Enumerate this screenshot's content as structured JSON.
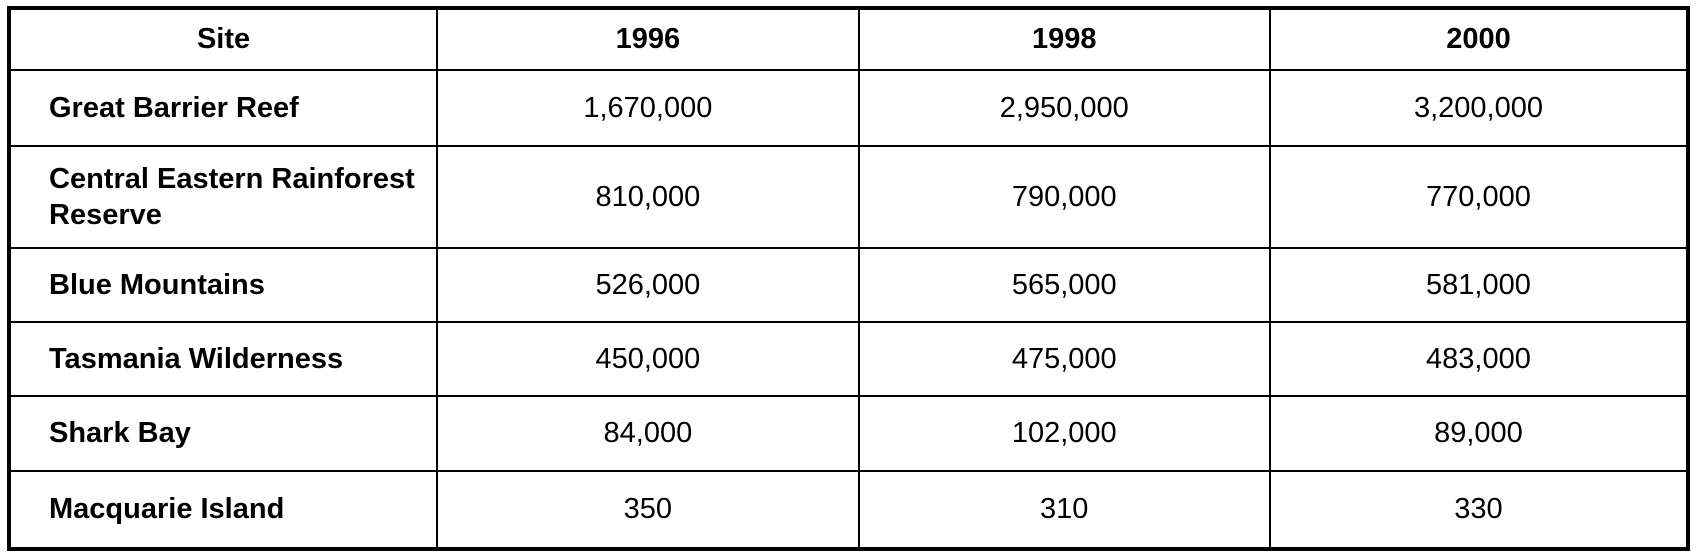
{
  "table": {
    "columns": [
      "Site",
      "1996",
      "1998",
      "2000"
    ],
    "rows": [
      {
        "cells": [
          "Great Barrier Reef",
          "1,670,000",
          "2,950,000",
          "3,200,000"
        ]
      },
      {
        "cells": [
          "Central Eastern Rainforest Reserve",
          "810,000",
          "790,000",
          "770,000"
        ]
      },
      {
        "cells": [
          "Blue Mountains",
          "526,000",
          "565,000",
          "581,000"
        ]
      },
      {
        "cells": [
          "Tasmania Wilderness",
          "450,000",
          "475,000",
          "483,000"
        ]
      },
      {
        "cells": [
          "Shark Bay",
          "84,000",
          "102,000",
          "89,000"
        ]
      },
      {
        "cells": [
          "Macquarie Island",
          "350",
          "310",
          "330"
        ]
      }
    ]
  },
  "chart_data": {
    "type": "table",
    "columns": [
      "Site",
      "1996",
      "1998",
      "2000"
    ],
    "rows": [
      [
        "Great Barrier Reef",
        1670000,
        2950000,
        3200000
      ],
      [
        "Central Eastern Rainforest Reserve",
        810000,
        790000,
        770000
      ],
      [
        "Blue Mountains",
        526000,
        565000,
        581000
      ],
      [
        "Tasmania Wilderness",
        450000,
        475000,
        483000
      ],
      [
        "Shark Bay",
        84000,
        102000,
        89000
      ],
      [
        "Macquarie Island",
        350,
        310,
        330
      ]
    ]
  },
  "colors": {
    "border": "#000000",
    "background": "#ffffff",
    "text": "#000000"
  }
}
